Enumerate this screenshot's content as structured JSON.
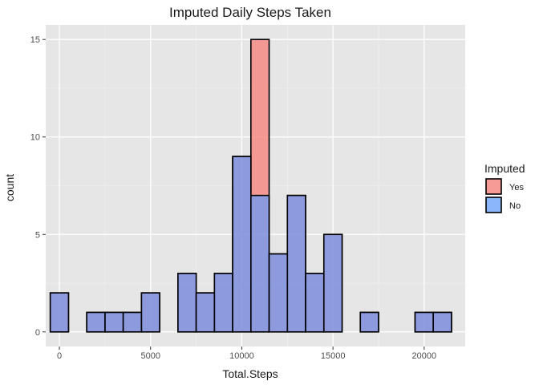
{
  "chart_data": {
    "type": "bar",
    "title": "Imputed Daily Steps Taken",
    "xlabel": "Total.Steps",
    "ylabel": "count",
    "xlim": [
      -750,
      22250
    ],
    "ylim": [
      -0.75,
      15.75
    ],
    "x_ticks": [
      0,
      5000,
      10000,
      15000,
      20000
    ],
    "x_tick_labels": [
      "0",
      "5000",
      "10000",
      "15000",
      "20000"
    ],
    "y_ticks": [
      0,
      5,
      10,
      15
    ],
    "y_tick_labels": [
      "0",
      "5",
      "10",
      "15"
    ],
    "grid": true,
    "legend_position": "right",
    "legend_title": "Imputed",
    "bin_width": 1000,
    "bin_centers": [
      0,
      1000,
      2000,
      3000,
      4000,
      5000,
      6000,
      7000,
      8000,
      9000,
      10000,
      11000,
      12000,
      13000,
      14000,
      15000,
      16000,
      17000,
      18000,
      19000,
      20000,
      21000
    ],
    "series": [
      {
        "name": "Yes",
        "color": "#F8766D",
        "values": [
          2,
          0,
          1,
          1,
          1,
          2,
          0,
          3,
          2,
          3,
          9,
          15,
          4,
          7,
          3,
          5,
          0,
          1,
          0,
          0,
          1,
          1
        ]
      },
      {
        "name": "No",
        "color": "#619CFF",
        "values": [
          2,
          0,
          1,
          1,
          1,
          2,
          0,
          3,
          2,
          3,
          9,
          7,
          4,
          7,
          3,
          5,
          0,
          1,
          0,
          0,
          1,
          1
        ]
      }
    ]
  }
}
